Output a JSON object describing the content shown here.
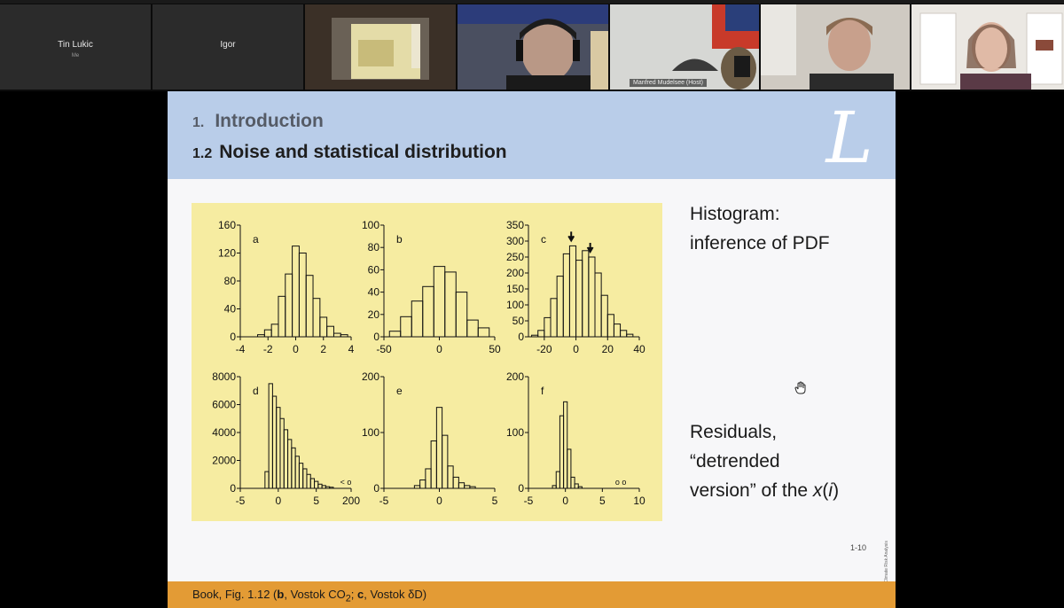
{
  "participants": [
    {
      "name": "Tin Lukic",
      "subtitle": "Me",
      "type": "name"
    },
    {
      "name": "Igor",
      "subtitle": "",
      "type": "name"
    },
    {
      "name": "",
      "type": "video"
    },
    {
      "name": "",
      "type": "video"
    },
    {
      "name": "Manfred Mudelsee (Host)",
      "type": "video",
      "active": true
    },
    {
      "name": "",
      "type": "video"
    },
    {
      "name": "",
      "type": "video"
    }
  ],
  "slide": {
    "section_number": "1.",
    "section_title": "Introduction",
    "subsection_number": "1.2",
    "subsection_title": "Noise and statistical distribution",
    "logo_letter": "L",
    "right_text_1": [
      "Histogram:",
      "inference of PDF"
    ],
    "right_text_2_line1": "Residuals,",
    "right_text_2_line2": "“detrended",
    "right_text_2_line3_prefix": "version” of the ",
    "right_text_2_line3_x": "x",
    "right_text_2_line3_paren_open": "(",
    "right_text_2_line3_i": "i",
    "right_text_2_line3_paren_close": ")",
    "page_number": "1-10",
    "copyright": "© Climate Risk Analysis",
    "footer_prefix": "Book, Fig. 1.12 (",
    "footer_b": "b",
    "footer_mid1": ", Vostok CO",
    "footer_sub": "2",
    "footer_mid2": "; ",
    "footer_c": "c",
    "footer_end": ", Vostok δD)"
  },
  "colors": {
    "header_bg": "#b9cde9",
    "figure_bg": "#f6eca1",
    "footer_bg": "#e39b35",
    "active_tile_border": "#2ea8ff"
  },
  "chart_data": [
    {
      "type": "bar",
      "panel_label": "a",
      "xlim": [
        -4,
        4
      ],
      "ylim": [
        0,
        160
      ],
      "xticks": [
        "-4",
        "-2",
        "0",
        "2",
        "4"
      ],
      "yticks": [
        "0",
        "40",
        "80",
        "120",
        "160"
      ],
      "x": [
        -2.5,
        -2.0,
        -1.5,
        -1.0,
        -0.5,
        0.0,
        0.5,
        1.0,
        1.5,
        2.0,
        2.5,
        3.0,
        3.5
      ],
      "values": [
        3,
        10,
        18,
        58,
        90,
        130,
        120,
        88,
        55,
        28,
        15,
        5,
        3
      ]
    },
    {
      "type": "bar",
      "panel_label": "b",
      "xlim": [
        -50,
        50
      ],
      "ylim": [
        0,
        100
      ],
      "xticks": [
        "-50",
        "0",
        "50"
      ],
      "yticks": [
        "0",
        "20",
        "40",
        "60",
        "80",
        "100"
      ],
      "x": [
        -40,
        -30,
        -20,
        -10,
        0,
        10,
        20,
        30,
        40
      ],
      "values": [
        5,
        18,
        32,
        45,
        63,
        58,
        40,
        15,
        8
      ]
    },
    {
      "type": "bar",
      "panel_label": "c",
      "xlim": [
        -30,
        40
      ],
      "ylim": [
        0,
        350
      ],
      "xticks": [
        "-20",
        "0",
        "20",
        "40"
      ],
      "yticks": [
        "0",
        "50",
        "100",
        "150",
        "200",
        "250",
        "300",
        "350"
      ],
      "x": [
        -26,
        -22,
        -18,
        -14,
        -10,
        -6,
        -2,
        2,
        6,
        10,
        14,
        18,
        22,
        26,
        30,
        34
      ],
      "values": [
        5,
        20,
        60,
        120,
        190,
        260,
        285,
        240,
        270,
        250,
        200,
        130,
        70,
        40,
        20,
        8
      ],
      "annotations": [
        "arrow at -3",
        "arrow at 9"
      ]
    },
    {
      "type": "bar",
      "panel_label": "d",
      "xlim": [
        -5,
        200
      ],
      "ylim": [
        0,
        8000
      ],
      "xticks": [
        "-5",
        "0",
        "5",
        "200"
      ],
      "yticks": [
        "0",
        "2000",
        "4000",
        "6000",
        "8000"
      ],
      "x": [
        -1.5,
        -1.0,
        -0.5,
        0.0,
        0.5,
        1.0,
        1.5,
        2.0,
        2.5,
        3.0,
        3.5,
        4.0,
        4.5,
        5.0,
        5.5,
        6.0,
        6.5,
        7.0
      ],
      "values": [
        1200,
        7500,
        6600,
        5800,
        5000,
        4200,
        3500,
        2900,
        2300,
        1800,
        1400,
        1000,
        700,
        500,
        300,
        200,
        120,
        80
      ],
      "annotations": [
        "< o"
      ]
    },
    {
      "type": "bar",
      "panel_label": "e",
      "xlim": [
        -5,
        5
      ],
      "ylim": [
        0,
        200
      ],
      "xticks": [
        "-5",
        "0",
        "5"
      ],
      "yticks": [
        "0",
        "100",
        "200"
      ],
      "x": [
        -2.0,
        -1.5,
        -1.0,
        -0.5,
        0.0,
        0.5,
        1.0,
        1.5,
        2.0,
        2.5,
        3.0
      ],
      "values": [
        5,
        15,
        35,
        85,
        145,
        95,
        40,
        20,
        10,
        5,
        3
      ]
    },
    {
      "type": "bar",
      "panel_label": "f",
      "xlim": [
        -5,
        10
      ],
      "ylim": [
        0,
        200
      ],
      "xticks": [
        "-5",
        "0",
        "5",
        "10"
      ],
      "yticks": [
        "0",
        "100",
        "200"
      ],
      "x": [
        -1.5,
        -1.0,
        -0.5,
        0.0,
        0.5,
        1.0,
        1.5,
        2.0
      ],
      "values": [
        5,
        30,
        130,
        155,
        70,
        20,
        8,
        3
      ],
      "annotations": [
        "o o"
      ]
    }
  ]
}
